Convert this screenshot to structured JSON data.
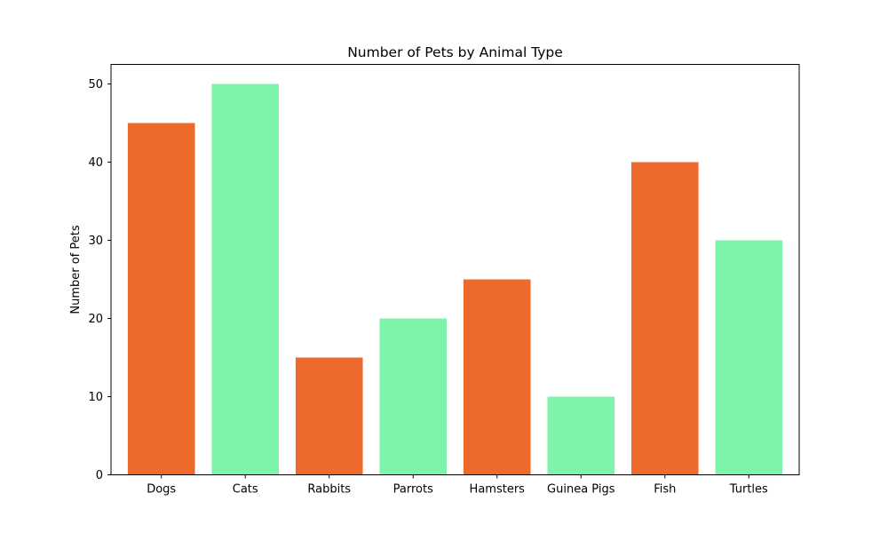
{
  "chart_data": {
    "type": "bar",
    "title": "Number of Pets by Animal Type",
    "xlabel": "",
    "ylabel": "Number of Pets",
    "categories": [
      "Dogs",
      "Cats",
      "Rabbits",
      "Parrots",
      "Hamsters",
      "Guinea Pigs",
      "Fish",
      "Turtles"
    ],
    "values": [
      45,
      50,
      15,
      20,
      25,
      10,
      40,
      30
    ],
    "colors": [
      "#ed6a2c",
      "#7ef4aa",
      "#ed6a2c",
      "#7ef4aa",
      "#ed6a2c",
      "#7ef4aa",
      "#ed6a2c",
      "#7ef4aa"
    ],
    "ylim": [
      0,
      52.5
    ],
    "yticks": [
      0,
      10,
      20,
      30,
      40,
      50
    ],
    "grid": false,
    "legend": "none"
  }
}
